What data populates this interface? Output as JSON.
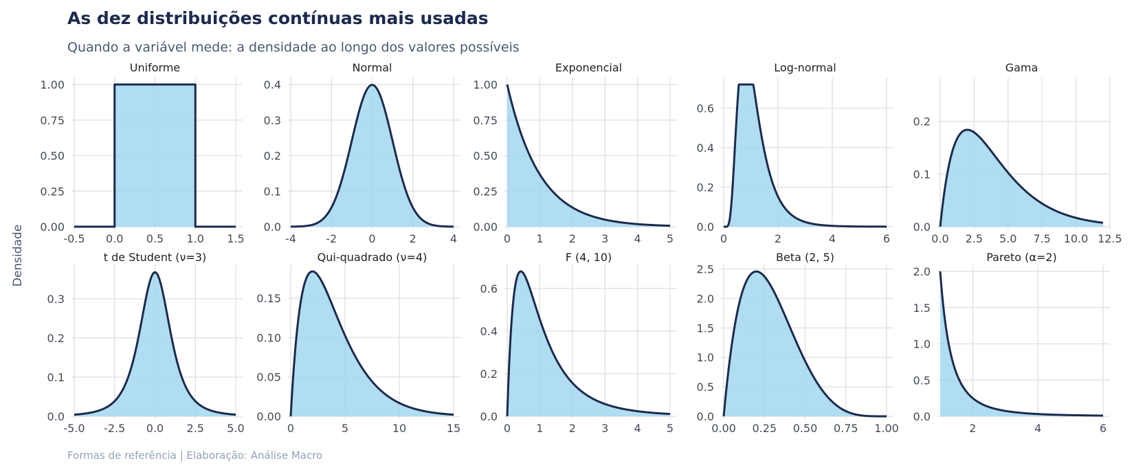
{
  "title": "As dez distribuições contínuas mais usadas",
  "subtitle": "Quando a variável mede: a densidade ao longo dos valores possíveis",
  "ylabel": "Densidade",
  "caption": "Formas de referência | Elaboração: Análise Macro",
  "colors": {
    "line": "#1b2a4e",
    "fill": "#9dd5ee",
    "grid": "#e3e3e3"
  },
  "chart_data": [
    {
      "type": "area",
      "title": "Uniforme",
      "dist": "uniform",
      "params": {
        "a": 0,
        "b": 1
      },
      "xlim": [
        -0.5,
        1.5
      ],
      "ylim": [
        0,
        1.0
      ],
      "xticks": [
        -0.5,
        0.0,
        0.5,
        1.0,
        1.5
      ],
      "xtick_labels": [
        "-0.5",
        "0.0",
        "0.5",
        "1.0",
        "1.5"
      ],
      "yticks": [
        0,
        0.25,
        0.5,
        0.75,
        1.0
      ],
      "ytick_labels": [
        "0.00",
        "0.25",
        "0.50",
        "0.75",
        "1.00"
      ]
    },
    {
      "type": "area",
      "title": "Normal",
      "dist": "normal",
      "params": {
        "mu": 0,
        "sigma": 1
      },
      "xlim": [
        -4,
        4
      ],
      "ylim": [
        0,
        0.4
      ],
      "xticks": [
        -4,
        -2,
        0,
        2,
        4
      ],
      "xtick_labels": [
        "-4",
        "-2",
        "0",
        "2",
        "4"
      ],
      "yticks": [
        0,
        0.1,
        0.2,
        0.3,
        0.4
      ],
      "ytick_labels": [
        "0.0",
        "0.1",
        "0.2",
        "0.3",
        "0.4"
      ]
    },
    {
      "type": "area",
      "title": "Exponencial",
      "dist": "exponential",
      "params": {
        "rate": 1
      },
      "xlim": [
        0,
        5
      ],
      "ylim": [
        0,
        1.0
      ],
      "xticks": [
        0,
        1,
        2,
        3,
        4,
        5
      ],
      "xtick_labels": [
        "0",
        "1",
        "2",
        "3",
        "4",
        "5"
      ],
      "yticks": [
        0,
        0.25,
        0.5,
        0.75,
        1.0
      ],
      "ytick_labels": [
        "0.00",
        "0.25",
        "0.50",
        "0.75",
        "1.00"
      ]
    },
    {
      "type": "area",
      "title": "Log-normal",
      "dist": "lognormal",
      "params": {
        "mu": 0,
        "sigma": 0.5
      },
      "xlim": [
        0,
        6
      ],
      "ylim": [
        0,
        0.72
      ],
      "xticks": [
        0,
        2,
        4,
        6
      ],
      "xtick_labels": [
        "0",
        "2",
        "4",
        "6"
      ],
      "yticks": [
        0,
        0.2,
        0.4,
        0.6
      ],
      "ytick_labels": [
        "0.0",
        "0.2",
        "0.4",
        "0.6"
      ]
    },
    {
      "type": "area",
      "title": "Gama",
      "dist": "gamma",
      "params": {
        "shape": 2,
        "scale": 2
      },
      "xlim": [
        0,
        12
      ],
      "ylim": [
        0,
        0.27
      ],
      "xticks": [
        0,
        2.5,
        5,
        7.5,
        10,
        12.5
      ],
      "xtick_labels": [
        "0.0",
        "2.5",
        "5.0",
        "7.5",
        "10.0",
        "12.5"
      ],
      "yticks": [
        0,
        0.1,
        0.2
      ],
      "ytick_labels": [
        "0.0",
        "0.1",
        "0.2"
      ]
    },
    {
      "type": "area",
      "title": "t de Student (ν=3)",
      "dist": "student_t",
      "params": {
        "df": 3
      },
      "xlim": [
        -5,
        5
      ],
      "ylim": [
        0,
        0.37
      ],
      "xticks": [
        -5,
        -2.5,
        0,
        2.5,
        5
      ],
      "xtick_labels": [
        "-5.0",
        "-2.5",
        "0.0",
        "2.5",
        "5.0"
      ],
      "yticks": [
        0,
        0.1,
        0.2,
        0.3
      ],
      "ytick_labels": [
        "0.0",
        "0.1",
        "0.2",
        "0.3"
      ]
    },
    {
      "type": "area",
      "title": "Qui-quadrado (ν=4)",
      "dist": "chi2",
      "params": {
        "df": 4
      },
      "xlim": [
        0,
        15
      ],
      "ylim": [
        0,
        0.184
      ],
      "xticks": [
        0,
        5,
        10,
        15
      ],
      "xtick_labels": [
        "0",
        "5",
        "10",
        "15"
      ],
      "yticks": [
        0,
        0.05,
        0.1,
        0.15
      ],
      "ytick_labels": [
        "0.00",
        "0.05",
        "0.10",
        "0.15"
      ]
    },
    {
      "type": "area",
      "title": "F (4, 10)",
      "dist": "f",
      "params": {
        "d1": 4,
        "d2": 10
      },
      "xlim": [
        0,
        5
      ],
      "ylim": [
        0,
        0.68
      ],
      "xticks": [
        0,
        1,
        2,
        3,
        4,
        5
      ],
      "xtick_labels": [
        "0",
        "1",
        "2",
        "3",
        "4",
        "5"
      ],
      "yticks": [
        0,
        0.2,
        0.4,
        0.6
      ],
      "ytick_labels": [
        "0.0",
        "0.2",
        "0.4",
        "0.6"
      ]
    },
    {
      "type": "area",
      "title": "Beta (2, 5)",
      "dist": "beta",
      "params": {
        "a": 2,
        "b": 5
      },
      "xlim": [
        0,
        1
      ],
      "ylim": [
        0,
        2.46
      ],
      "xticks": [
        0,
        0.25,
        0.5,
        0.75,
        1.0
      ],
      "xtick_labels": [
        "0.00",
        "0.25",
        "0.50",
        "0.75",
        "1.00"
      ],
      "yticks": [
        0,
        0.5,
        1.0,
        1.5,
        2.0,
        2.5
      ],
      "ytick_labels": [
        "0.0",
        "0.5",
        "1.0",
        "1.5",
        "2.0",
        "2.5"
      ]
    },
    {
      "type": "area",
      "title": "Pareto (α=2)",
      "dist": "pareto",
      "params": {
        "alpha": 2,
        "xm": 1
      },
      "xlim": [
        1,
        6
      ],
      "ylim": [
        0,
        2.0
      ],
      "xticks": [
        2,
        4,
        6
      ],
      "xtick_labels": [
        "2",
        "4",
        "6"
      ],
      "yticks": [
        0,
        0.5,
        1.0,
        1.5,
        2.0
      ],
      "ytick_labels": [
        "0.0",
        "0.5",
        "1.0",
        "1.5",
        "2.0"
      ]
    }
  ]
}
